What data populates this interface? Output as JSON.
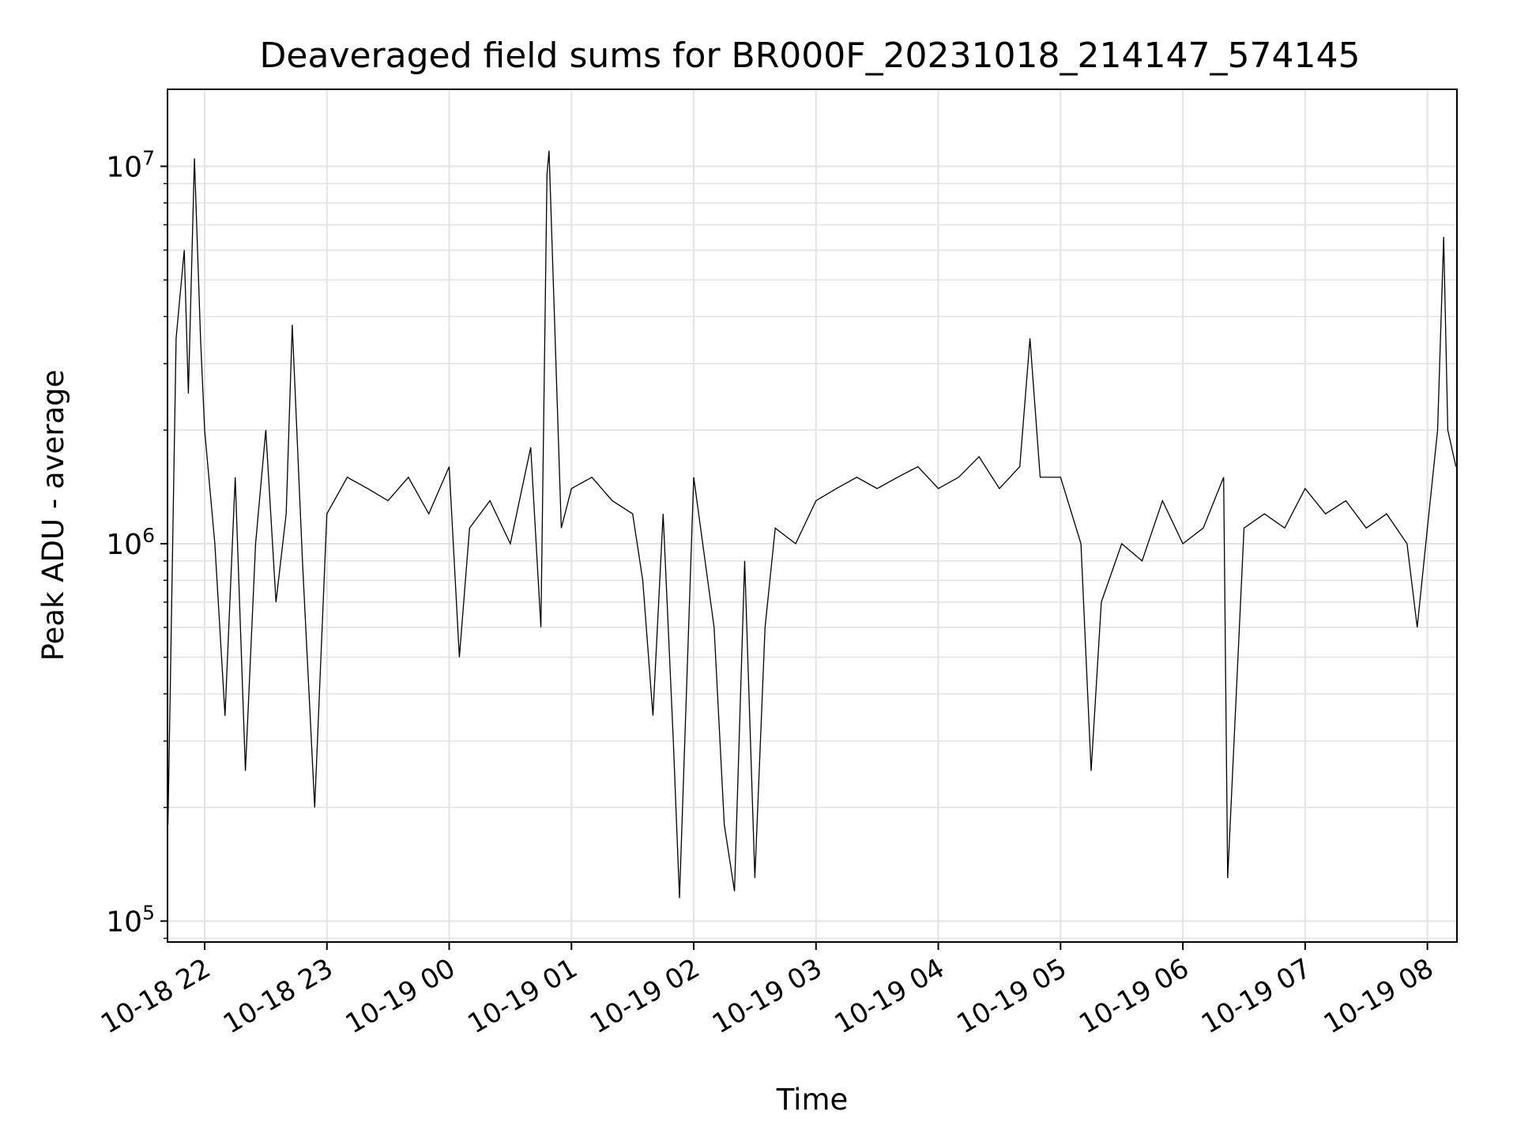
{
  "chart_data": {
    "type": "line",
    "title": "Deaveraged field sums for BR000F_20231018_214147_574145",
    "xlabel": "Time",
    "ylabel": "Peak ADU - average",
    "yscale": "log",
    "ylim": [
      88000,
      16000000
    ],
    "xlim": [
      "10-18 21:41:47",
      "10-19 08:14:30"
    ],
    "grid": true,
    "line_color": "#000000",
    "x_ticks": [
      "10-18 22",
      "10-18 23",
      "10-19 00",
      "10-19 01",
      "10-19 02",
      "10-19 03",
      "10-19 04",
      "10-19 05",
      "10-19 06",
      "10-19 07",
      "10-19 08"
    ],
    "y_ticks": [
      {
        "value": 100000,
        "base": "10",
        "exp": "5"
      },
      {
        "value": 1000000,
        "base": "10",
        "exp": "6"
      },
      {
        "value": 10000000,
        "base": "10",
        "exp": "7"
      }
    ],
    "series": [
      {
        "x": [
          "10-18 21:42",
          "10-18 21:46",
          "10-18 21:50",
          "10-18 21:52",
          "10-18 21:55",
          "10-18 21:58",
          "10-18 22:00",
          "10-18 22:05",
          "10-18 22:10",
          "10-18 22:15",
          "10-18 22:20",
          "10-18 22:25",
          "10-18 22:30",
          "10-18 22:35",
          "10-18 22:40",
          "10-18 22:43",
          "10-18 22:48",
          "10-18 22:54",
          "10-18 23:00",
          "10-18 23:10",
          "10-18 23:20",
          "10-18 23:30",
          "10-18 23:40",
          "10-18 23:50",
          "10-19 00:00",
          "10-19 00:05",
          "10-19 00:10",
          "10-19 00:20",
          "10-19 00:30",
          "10-19 00:40",
          "10-19 00:45",
          "10-19 00:48",
          "10-19 00:49",
          "10-19 00:55",
          "10-19 01:00",
          "10-19 01:10",
          "10-19 01:20",
          "10-19 01:30",
          "10-19 01:35",
          "10-19 01:40",
          "10-19 01:45",
          "10-19 01:50",
          "10-19 01:53",
          "10-19 02:00",
          "10-19 02:10",
          "10-19 02:15",
          "10-19 02:20",
          "10-19 02:25",
          "10-19 02:30",
          "10-19 02:35",
          "10-19 02:40",
          "10-19 02:50",
          "10-19 03:00",
          "10-19 03:10",
          "10-19 03:20",
          "10-19 03:30",
          "10-19 03:40",
          "10-19 03:50",
          "10-19 04:00",
          "10-19 04:10",
          "10-19 04:20",
          "10-19 04:30",
          "10-19 04:40",
          "10-19 04:45",
          "10-19 04:50",
          "10-19 05:00",
          "10-19 05:10",
          "10-19 05:15",
          "10-19 05:20",
          "10-19 05:30",
          "10-19 05:40",
          "10-19 05:50",
          "10-19 06:00",
          "10-19 06:10",
          "10-19 06:20",
          "10-19 06:22",
          "10-19 06:30",
          "10-19 06:40",
          "10-19 06:50",
          "10-19 07:00",
          "10-19 07:10",
          "10-19 07:20",
          "10-19 07:30",
          "10-19 07:40",
          "10-19 07:50",
          "10-19 07:55",
          "10-19 08:00",
          "10-19 08:05",
          "10-19 08:08",
          "10-19 08:10",
          "10-19 08:14"
        ],
        "y": [
          180000,
          3500000,
          6000000,
          2500000,
          10500000,
          3500000,
          2000000,
          1000000,
          350000,
          1500000,
          250000,
          1000000,
          2000000,
          700000,
          1200000,
          3800000,
          900000,
          200000,
          1200000,
          1500000,
          1400000,
          1300000,
          1500000,
          1200000,
          1600000,
          500000,
          1100000,
          1300000,
          1000000,
          1800000,
          600000,
          9500000,
          11000000,
          1100000,
          1400000,
          1500000,
          1300000,
          1200000,
          800000,
          350000,
          1200000,
          300000,
          115000,
          1500000,
          600000,
          180000,
          120000,
          900000,
          130000,
          600000,
          1100000,
          1000000,
          1300000,
          1400000,
          1500000,
          1400000,
          1500000,
          1600000,
          1400000,
          1500000,
          1700000,
          1400000,
          1600000,
          3500000,
          1500000,
          1500000,
          1000000,
          250000,
          700000,
          1000000,
          900000,
          1300000,
          1000000,
          1100000,
          1500000,
          130000,
          1100000,
          1200000,
          1100000,
          1400000,
          1200000,
          1300000,
          1100000,
          1200000,
          1000000,
          600000,
          1100000,
          2000000,
          6500000,
          2000000,
          1600000
        ]
      }
    ]
  }
}
